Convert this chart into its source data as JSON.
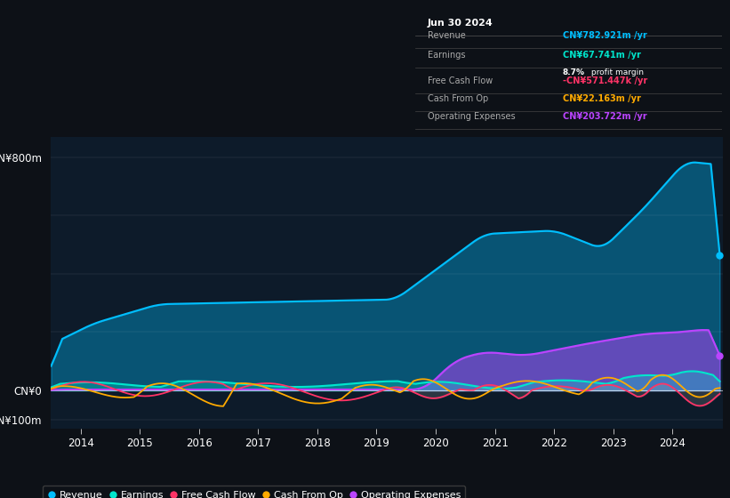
{
  "background_color": "#0d1117",
  "plot_bg_color": "#0d1b2a",
  "colors": {
    "revenue": "#00bfff",
    "earnings": "#00e5cc",
    "free_cash_flow": "#ff3366",
    "cash_from_op": "#ffaa00",
    "op_expenses": "#bb44ff"
  },
  "xtick_labels": [
    "2014",
    "2015",
    "2016",
    "2017",
    "2018",
    "2019",
    "2020",
    "2021",
    "2022",
    "2023",
    "2024"
  ],
  "info_box": {
    "date": "Jun 30 2024",
    "revenue_label": "Revenue",
    "revenue_val": "CN¥782.921m /yr",
    "earnings_label": "Earnings",
    "earnings_val": "CN¥67.741m /yr",
    "profit_margin": "8.7% profit margin",
    "fcf_label": "Free Cash Flow",
    "fcf_val": "-CN¥571.447k /yr",
    "cop_label": "Cash From Op",
    "cop_val": "CN¥22.163m /yr",
    "opex_label": "Operating Expenses",
    "opex_val": "CN¥203.722m /yr"
  },
  "legend_items": [
    "Revenue",
    "Earnings",
    "Free Cash Flow",
    "Cash From Op",
    "Operating Expenses"
  ]
}
